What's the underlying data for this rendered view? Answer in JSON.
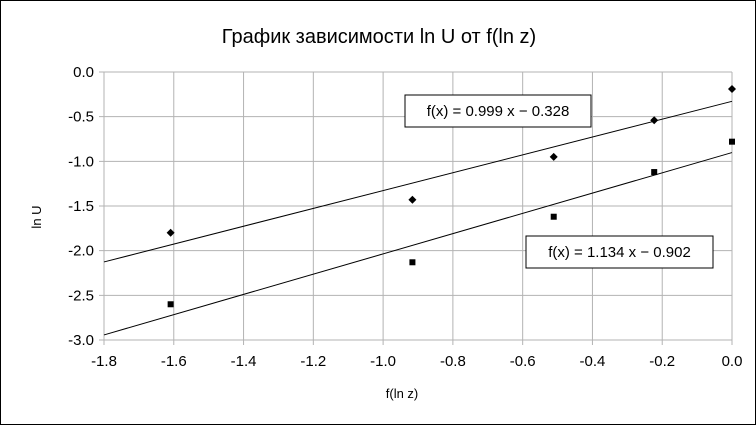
{
  "chart_data": {
    "type": "scatter",
    "title": "График зависимости ln U от f(ln z)",
    "xlabel": "f(ln z)",
    "ylabel": "ln U",
    "xlim": [
      -1.8,
      0.0
    ],
    "ylim": [
      -3.0,
      0.0
    ],
    "x_ticks": [
      -1.8,
      -1.6,
      -1.4,
      -1.2,
      -1.0,
      -0.8,
      -0.6,
      -0.4,
      -0.2,
      0.0
    ],
    "y_ticks": [
      0.0,
      -0.5,
      -1.0,
      -1.5,
      -2.0,
      -2.5,
      -3.0
    ],
    "x_tick_labels": [
      "-1.8",
      "-1.6",
      "-1.4",
      "-1.2",
      "-1.0",
      "-0.8",
      "-0.6",
      "-0.4",
      "-0.2",
      "0.0"
    ],
    "y_tick_labels": [
      "0.0",
      "-0.5",
      "-1.0",
      "-1.5",
      "-2.0",
      "-2.5",
      "-3.0"
    ],
    "grid": true,
    "series": [
      {
        "marker": "diamond",
        "points": [
          {
            "x": -1.609,
            "y": -1.8
          },
          {
            "x": -0.916,
            "y": -1.43
          },
          {
            "x": -0.511,
            "y": -0.95
          },
          {
            "x": -0.223,
            "y": -0.54
          },
          {
            "x": 0.0,
            "y": -0.19
          }
        ],
        "trendline": {
          "slope": 0.999,
          "intercept": -0.328,
          "label": "f(x) = 0.999 x − 0.328"
        }
      },
      {
        "marker": "square",
        "points": [
          {
            "x": -1.609,
            "y": -2.6
          },
          {
            "x": -0.916,
            "y": -2.13
          },
          {
            "x": -0.511,
            "y": -1.62
          },
          {
            "x": -0.223,
            "y": -1.12
          },
          {
            "x": 0.0,
            "y": -0.78
          }
        ],
        "trendline": {
          "slope": 1.134,
          "intercept": -0.902,
          "label": "f(x) = 1.134 x − 0.902"
        }
      }
    ],
    "colors": {
      "line": "#000000",
      "grid": "#b3b3b3",
      "marker": "#000000"
    }
  }
}
